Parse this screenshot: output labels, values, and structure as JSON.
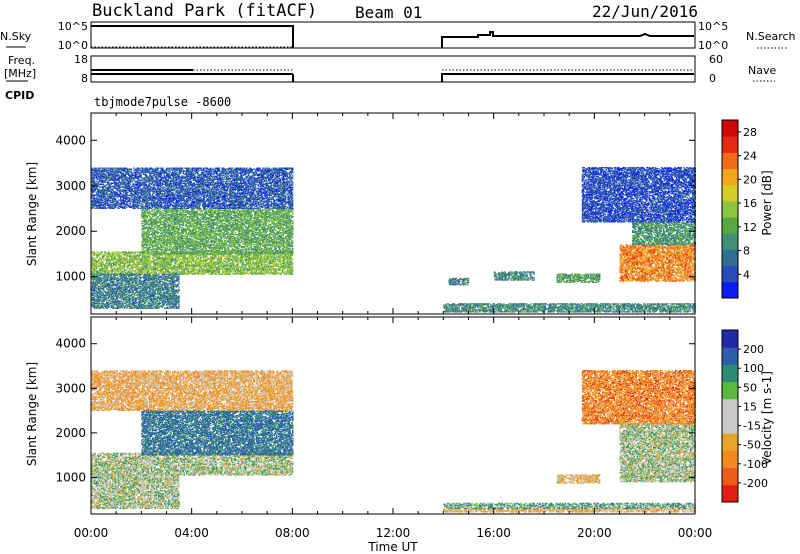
{
  "header": {
    "station": "Buckland Park (fitACF)",
    "beam": "Beam 01",
    "date": "22/Jun/2016"
  },
  "summary": {
    "left_labels": {
      "nsky": "N.Sky",
      "freq_line1": "Freq.",
      "freq_line2": "[MHz]",
      "cpid": "CPID"
    },
    "right_labels": {
      "nsearch": "N.Search",
      "nave": "Nave"
    },
    "noise_axis_ticks": [
      "10^5",
      "10^0"
    ],
    "freq_axis_ticks": [
      "18",
      "8"
    ],
    "nave_axis_ticks": [
      "60",
      "0"
    ],
    "cpid_text": "tbjmode7pulse -8600"
  },
  "chart_data": [
    {
      "type": "heatmap",
      "panel": "power",
      "xlabel": "Time UT",
      "ylabel": "Slant Range [km]",
      "xlim_hours": [
        0,
        24
      ],
      "ylim_km": [
        180,
        4600
      ],
      "x_ticks": [
        "00:00",
        "04:00",
        "08:00",
        "12:00",
        "16:00",
        "20:00",
        "00:00"
      ],
      "y_ticks": [
        1000,
        2000,
        3000,
        4000
      ],
      "colorbar": {
        "label": "Power [dB]",
        "ticks": [
          4,
          8,
          12,
          16,
          20,
          24,
          28
        ],
        "range": [
          0,
          30
        ],
        "colors": [
          "#0a1cf2",
          "#274bb7",
          "#2f6f92",
          "#3f8f7a",
          "#58a842",
          "#8cc63c",
          "#d6cc2a",
          "#f2a61c",
          "#f06a17",
          "#e52a12",
          "#d10808"
        ]
      },
      "regions": [
        {
          "t0": 0.0,
          "t1": 8.0,
          "r_lo": 1050,
          "r_hi": 1550,
          "value": 14
        },
        {
          "t0": 2.0,
          "t1": 8.0,
          "r_lo": 1500,
          "r_hi": 2500,
          "value": 12
        },
        {
          "t0": 0.0,
          "t1": 3.5,
          "r_lo": 300,
          "r_hi": 1050,
          "value": 8
        },
        {
          "t0": 0.0,
          "t1": 8.0,
          "r_lo": 2500,
          "r_hi": 3400,
          "value": 5
        },
        {
          "t0": 14.0,
          "t1": 24.0,
          "r_lo": 220,
          "r_hi": 400,
          "value": 9
        },
        {
          "t0": 14.2,
          "t1": 15.0,
          "r_lo": 820,
          "r_hi": 960,
          "value": 8
        },
        {
          "t0": 16.0,
          "t1": 17.6,
          "r_lo": 920,
          "r_hi": 1100,
          "value": 9
        },
        {
          "t0": 18.5,
          "t1": 20.2,
          "r_lo": 870,
          "r_hi": 1050,
          "value": 11
        },
        {
          "t0": 21.0,
          "t1": 24.0,
          "r_lo": 900,
          "r_hi": 1700,
          "value": 22
        },
        {
          "t0": 21.5,
          "t1": 24.0,
          "r_lo": 1700,
          "r_hi": 2200,
          "value": 10
        },
        {
          "t0": 19.5,
          "t1": 24.0,
          "r_lo": 2200,
          "r_hi": 3400,
          "value": 4
        }
      ]
    },
    {
      "type": "heatmap",
      "panel": "velocity",
      "xlabel": "Time UT",
      "ylabel": "Slant Range [km]",
      "xlim_hours": [
        0,
        24
      ],
      "ylim_km": [
        180,
        4600
      ],
      "x_ticks": [
        "00:00",
        "04:00",
        "08:00",
        "12:00",
        "16:00",
        "20:00",
        "00:00"
      ],
      "y_ticks": [
        1000,
        2000,
        3000,
        4000
      ],
      "colorbar": {
        "label": "Velocity [m s-1]",
        "ticks": [
          200,
          100,
          50,
          15,
          -15,
          -50,
          -100,
          -200
        ],
        "colors": [
          "#1f2aa8",
          "#2c5fa8",
          "#2f8a74",
          "#5ab83e",
          "#c8c8c8",
          "#c8c8c8",
          "#e8a42a",
          "#f08a1f",
          "#f05a1a",
          "#e21e12"
        ]
      },
      "regions": [
        {
          "t0": 0.0,
          "t1": 8.0,
          "r_lo": 1050,
          "r_hi": 1550,
          "value": 0
        },
        {
          "t0": 2.0,
          "t1": 8.0,
          "r_lo": 1500,
          "r_hi": 2500,
          "value": 120
        },
        {
          "t0": 0.0,
          "t1": 3.5,
          "r_lo": 300,
          "r_hi": 1050,
          "value": 0
        },
        {
          "t0": 0.0,
          "t1": 8.0,
          "r_lo": 2500,
          "r_hi": 3400,
          "value": -80
        },
        {
          "t0": 14.0,
          "t1": 24.0,
          "r_lo": 220,
          "r_hi": 300,
          "value": -80
        },
        {
          "t0": 14.0,
          "t1": 24.0,
          "r_lo": 300,
          "r_hi": 420,
          "value": 40
        },
        {
          "t0": 18.5,
          "t1": 20.2,
          "r_lo": 870,
          "r_hi": 1050,
          "value": -60
        },
        {
          "t0": 21.0,
          "t1": 24.0,
          "r_lo": 900,
          "r_hi": 2200,
          "value": 0
        },
        {
          "t0": 19.5,
          "t1": 24.0,
          "r_lo": 2200,
          "r_hi": 3400,
          "value": -150
        }
      ]
    }
  ]
}
